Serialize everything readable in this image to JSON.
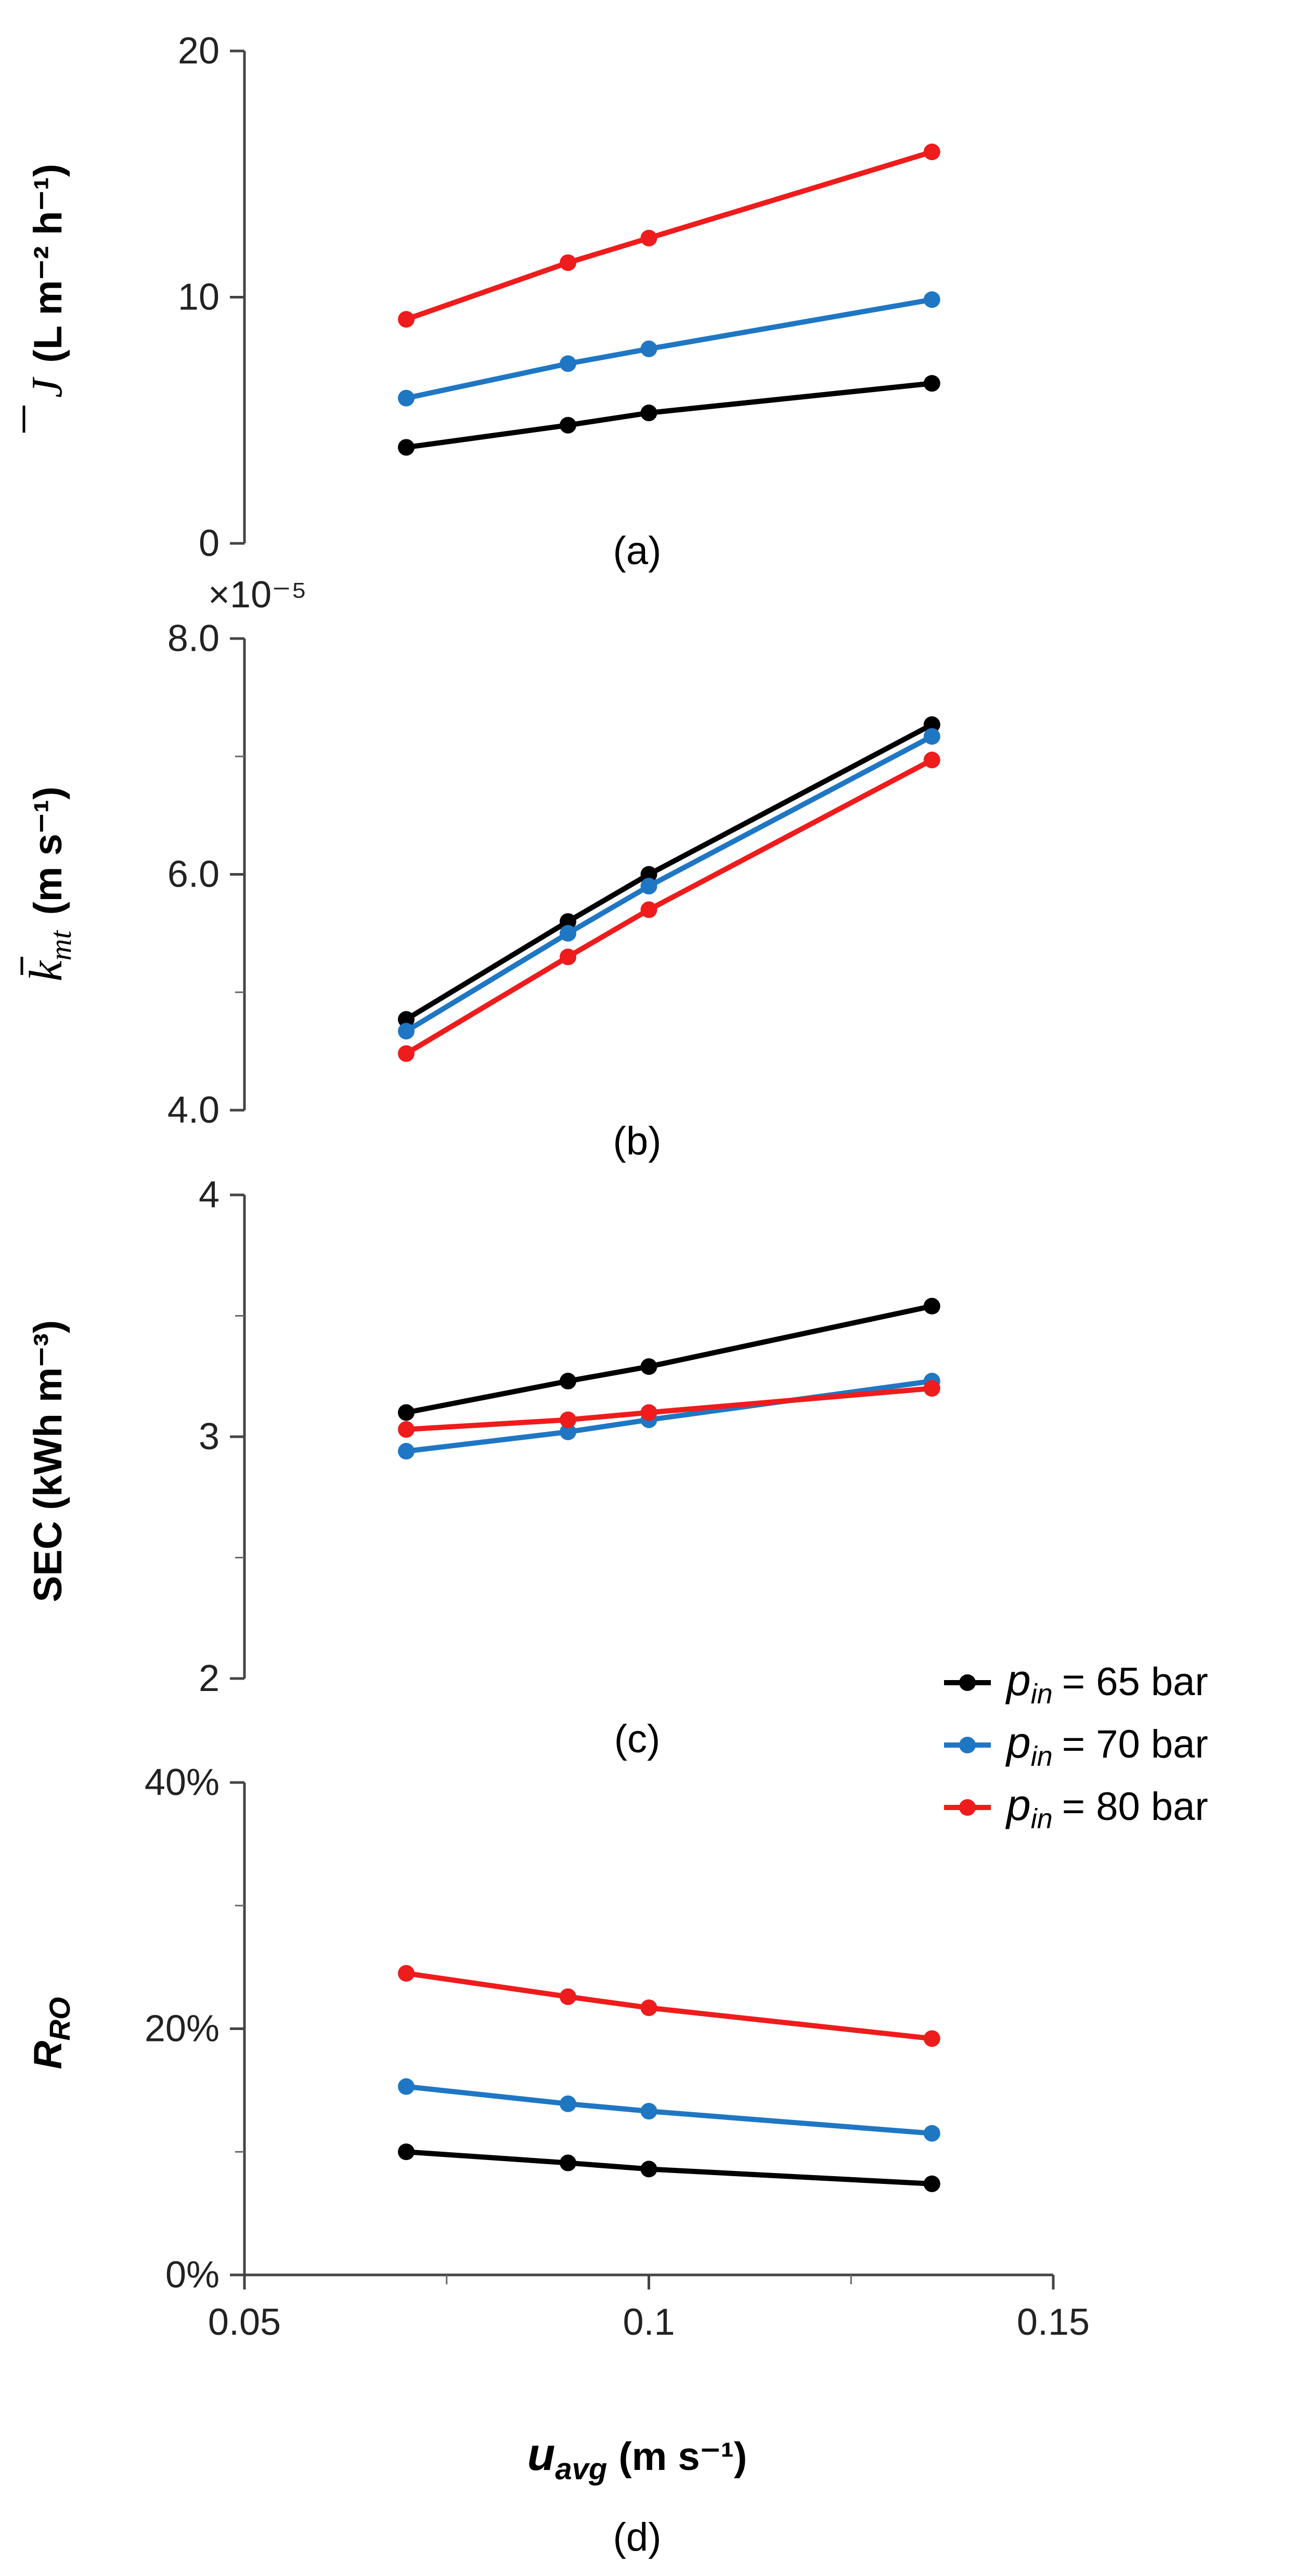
{
  "chart_data": [
    {
      "id": "a",
      "type": "line",
      "panel_label": "(a)",
      "ylabel_symbol": "J",
      "ylabel_units": "(L m⁻² h⁻¹)",
      "ylim": [
        0,
        20
      ],
      "yticks": [
        0,
        10,
        20
      ],
      "ytick_labels": [
        "0",
        "10",
        "20"
      ],
      "ymultiplier": "",
      "x": [
        0.07,
        0.09,
        0.1,
        0.135
      ],
      "series": [
        {
          "name": "p_in = 65 bar",
          "color": "#000000",
          "values": [
            3.9,
            4.8,
            5.3,
            6.5
          ]
        },
        {
          "name": "p_in = 70 bar",
          "color": "#1f77c4",
          "values": [
            5.9,
            7.3,
            7.9,
            9.9
          ]
        },
        {
          "name": "p_in = 80 bar",
          "color": "#ee1c1c",
          "values": [
            9.1,
            11.4,
            12.4,
            15.9
          ]
        }
      ]
    },
    {
      "id": "b",
      "type": "line",
      "panel_label": "(b)",
      "ylabel_symbol": "k",
      "ylabel_sub": "mt",
      "ylabel_units": "(m s⁻¹)",
      "ylim": [
        4.0,
        8.0
      ],
      "yticks": [
        4.0,
        5.0,
        6.0,
        7.0,
        8.0
      ],
      "ytick_labels": [
        "4.0",
        "",
        "6.0",
        "",
        "8.0"
      ],
      "ymultiplier": "×10⁻⁵",
      "x": [
        0.07,
        0.09,
        0.1,
        0.135
      ],
      "series": [
        {
          "name": "p_in = 65 bar",
          "color": "#000000",
          "values": [
            4.77,
            5.6,
            6.0,
            7.27
          ]
        },
        {
          "name": "p_in = 70 bar",
          "color": "#1f77c4",
          "values": [
            4.67,
            5.5,
            5.9,
            7.17
          ]
        },
        {
          "name": "p_in = 80 bar",
          "color": "#ee1c1c",
          "values": [
            4.48,
            5.3,
            5.7,
            6.97
          ]
        }
      ]
    },
    {
      "id": "c",
      "type": "line",
      "panel_label": "(c)",
      "ylabel": "SEC (kWh m⁻³)",
      "ylim": [
        2,
        4
      ],
      "yticks": [
        2,
        2.5,
        3,
        3.5,
        4
      ],
      "ytick_labels": [
        "2",
        "",
        "3",
        "",
        "4"
      ],
      "ymultiplier": "",
      "x": [
        0.07,
        0.09,
        0.1,
        0.135
      ],
      "series": [
        {
          "name": "p_in = 65 bar",
          "color": "#000000",
          "values": [
            3.1,
            3.23,
            3.29,
            3.54
          ]
        },
        {
          "name": "p_in = 70 bar",
          "color": "#1f77c4",
          "values": [
            2.94,
            3.02,
            3.07,
            3.23
          ]
        },
        {
          "name": "p_in = 80 bar",
          "color": "#ee1c1c",
          "values": [
            3.03,
            3.07,
            3.1,
            3.2
          ]
        }
      ]
    },
    {
      "id": "d",
      "type": "line",
      "panel_label": "(d)",
      "ylabel_symbol": "R",
      "ylabel_sub": "RO",
      "ylim": [
        0,
        40
      ],
      "yticks": [
        0,
        10,
        20,
        30,
        40
      ],
      "ytick_labels": [
        "0%",
        "",
        "20%",
        "",
        "40%"
      ],
      "ymultiplier": "",
      "x": [
        0.07,
        0.09,
        0.1,
        0.135
      ],
      "series": [
        {
          "name": "p_in = 65 bar",
          "color": "#000000",
          "values": [
            10.0,
            9.1,
            8.6,
            7.4
          ]
        },
        {
          "name": "p_in = 70 bar",
          "color": "#1f77c4",
          "values": [
            15.3,
            13.9,
            13.3,
            11.5
          ]
        },
        {
          "name": "p_in = 80 bar",
          "color": "#ee1c1c",
          "values": [
            24.5,
            22.6,
            21.7,
            19.2
          ]
        }
      ]
    }
  ],
  "x_axis": {
    "xlim": [
      0.05,
      0.15
    ],
    "ticks": [
      0.05,
      0.075,
      0.1,
      0.125,
      0.15
    ],
    "tick_labels": [
      "0.05",
      "",
      "0.1",
      "",
      "0.15"
    ],
    "label_symbol": "u",
    "label_sub": "avg",
    "label_units": "(m s⁻¹)"
  },
  "legend": {
    "placement": "right of panel (c)",
    "symbol": "p",
    "sub": "in",
    "entries": [
      {
        "value": "= 65 bar",
        "color": "#000000"
      },
      {
        "value": "= 70 bar",
        "color": "#1f77c4"
      },
      {
        "value": "= 80 bar",
        "color": "#ee1c1c"
      }
    ]
  }
}
